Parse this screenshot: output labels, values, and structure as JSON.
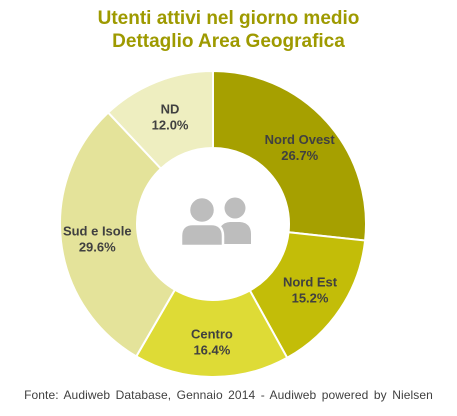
{
  "chart_data": {
    "type": "pie",
    "subtype": "donut",
    "title": "Utenti attivi nel giorno medio",
    "subtitle": "Dettaglio Area Geografica",
    "categories": [
      "Nord Ovest",
      "Nord Est",
      "Centro",
      "Sud e Isole",
      "ND"
    ],
    "values": [
      26.7,
      15.2,
      16.4,
      29.6,
      12.0
    ],
    "value_labels": [
      "26.7%",
      "15.2%",
      "16.4%",
      "29.6%",
      "12.0%"
    ],
    "colors": [
      "#a6a000",
      "#c3bd08",
      "#dedb36",
      "#e4e39a",
      "#eeeec0"
    ],
    "center_icon": "users-icon",
    "title_color": "#9e9a00",
    "legend": "none"
  },
  "footer": {
    "source": "Fonte: Audiweb Database, Gennaio 2014 - Audiweb powered by Nielsen"
  }
}
